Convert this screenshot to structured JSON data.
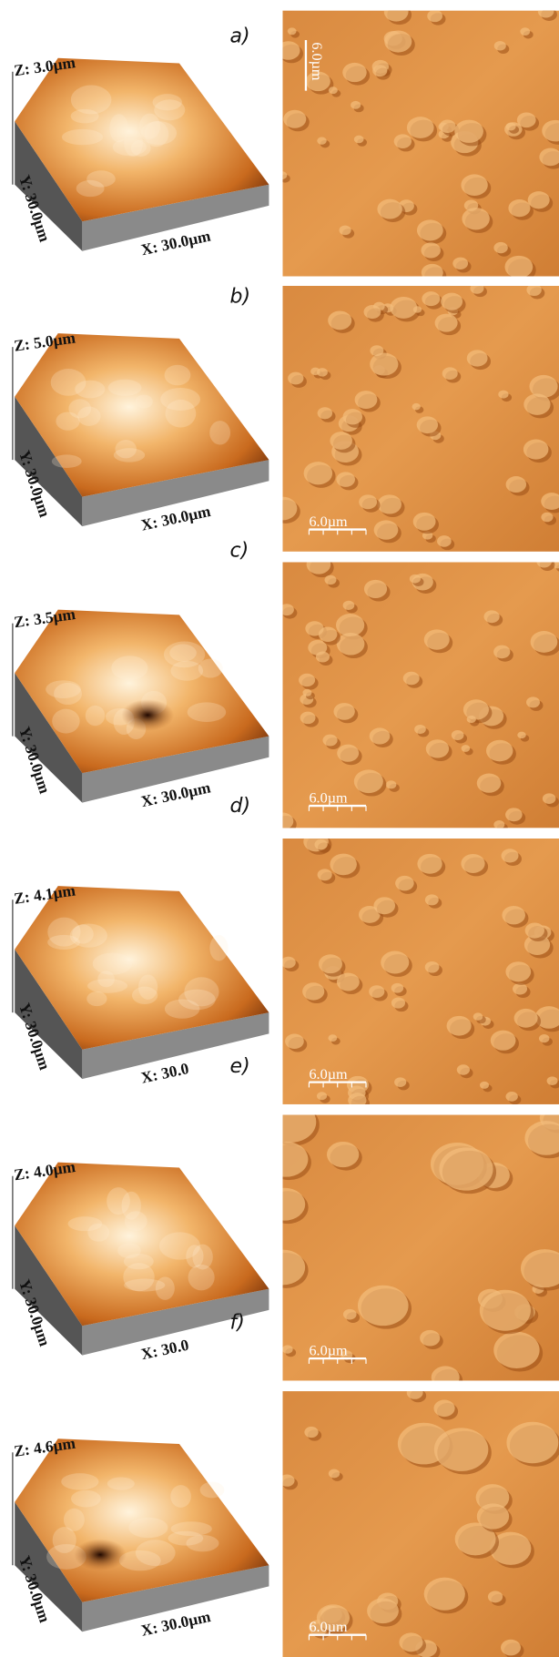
{
  "panels": [
    {
      "letter": "a)",
      "z_label": "Z: 3.0µm",
      "y_label": "Y: 30.0µm",
      "x_label": "X: 30.0µm",
      "scale_bar": "6.0µm"
    },
    {
      "letter": "b)",
      "z_label": "Z: 5.0µm",
      "y_label": "Y: 30.0µm",
      "x_label": "X: 30.0µm",
      "scale_bar": "6.0µm"
    },
    {
      "letter": "c)",
      "z_label": "Z: 3.5µm",
      "y_label": "Y: 30.0µm",
      "x_label": "X: 30.0µm",
      "scale_bar": "6.0µm"
    },
    {
      "letter": "d)",
      "z_label": "Z: 4.1µm",
      "y_label": "Y: 30.0µm",
      "x_label": "X: 30.0",
      "scale_bar": "6.0µm"
    },
    {
      "letter": "e)",
      "z_label": "Z: 4.0µm",
      "y_label": "Y: 30.0µm",
      "x_label": "X: 30.0",
      "scale_bar": "6.0µm"
    },
    {
      "letter": "f)",
      "z_label": "Z: 4.6µm",
      "y_label": "Y: 30.0µm",
      "x_label": "X: 30.0µm",
      "scale_bar": "6.0µm"
    }
  ]
}
